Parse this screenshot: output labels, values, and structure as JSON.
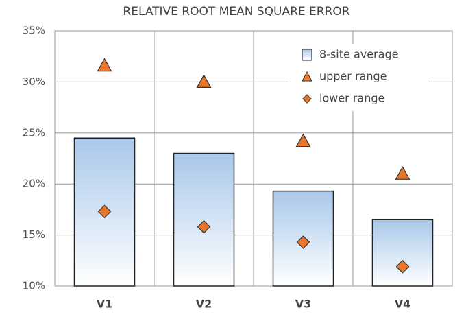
{
  "chart_data": {
    "type": "bar",
    "title": "RELATIVE ROOT MEAN SQUARE ERROR",
    "categories": [
      "V1",
      "V2",
      "V3",
      "V4"
    ],
    "series": [
      {
        "name": "8-site average",
        "marker": "bar",
        "color": "#a9c8ea",
        "values": [
          24.5,
          23.0,
          19.3,
          16.5
        ]
      },
      {
        "name": "upper range",
        "marker": "triangle",
        "color": "#e9772b",
        "values": [
          31.6,
          30.0,
          24.2,
          21.0
        ]
      },
      {
        "name": "lower range",
        "marker": "diamond",
        "color": "#e9772b",
        "values": [
          17.3,
          15.8,
          14.3,
          11.9
        ]
      }
    ],
    "ylim": [
      10,
      35
    ],
    "yticks": [
      {
        "value": 10,
        "label": "10%"
      },
      {
        "value": 15,
        "label": "15%"
      },
      {
        "value": 20,
        "label": "20%"
      },
      {
        "value": 25,
        "label": "25%"
      },
      {
        "value": 30,
        "label": "30%"
      },
      {
        "value": 35,
        "label": "35%"
      }
    ],
    "grid": true,
    "legend": "upper-right"
  }
}
